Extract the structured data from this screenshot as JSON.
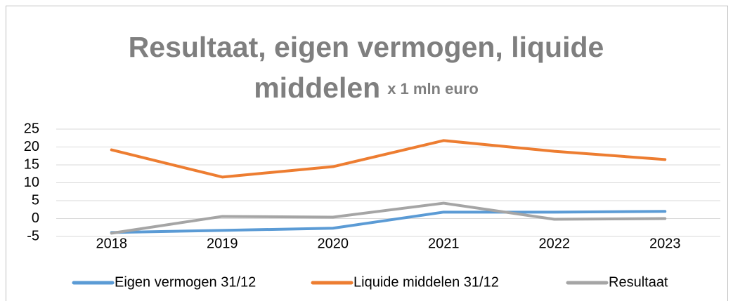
{
  "chart_data": {
    "type": "line",
    "title": "Resultaat, eigen vermogen, liquide middelen",
    "subtitle": "x 1 mln euro",
    "categories": [
      "2018",
      "2019",
      "2020",
      "2021",
      "2022",
      "2023"
    ],
    "series": [
      {
        "name": "Eigen vermogen 31/12",
        "color": "#5b9bd5",
        "values": [
          -3.9,
          -3.3,
          -2.7,
          1.8,
          1.8,
          2.0
        ]
      },
      {
        "name": "Liquide middelen 31/12",
        "color": "#ed7d31",
        "values": [
          19.2,
          11.6,
          14.5,
          21.8,
          18.8,
          16.5
        ]
      },
      {
        "name": "Resultaat",
        "color": "#a5a5a5",
        "values": [
          -4.1,
          0.6,
          0.4,
          4.3,
          -0.2,
          0
        ]
      }
    ],
    "ylim": [
      -5,
      25
    ],
    "yticks": [
      -5,
      0,
      5,
      10,
      15,
      20,
      25
    ],
    "grid": true,
    "legend": "bottom"
  }
}
